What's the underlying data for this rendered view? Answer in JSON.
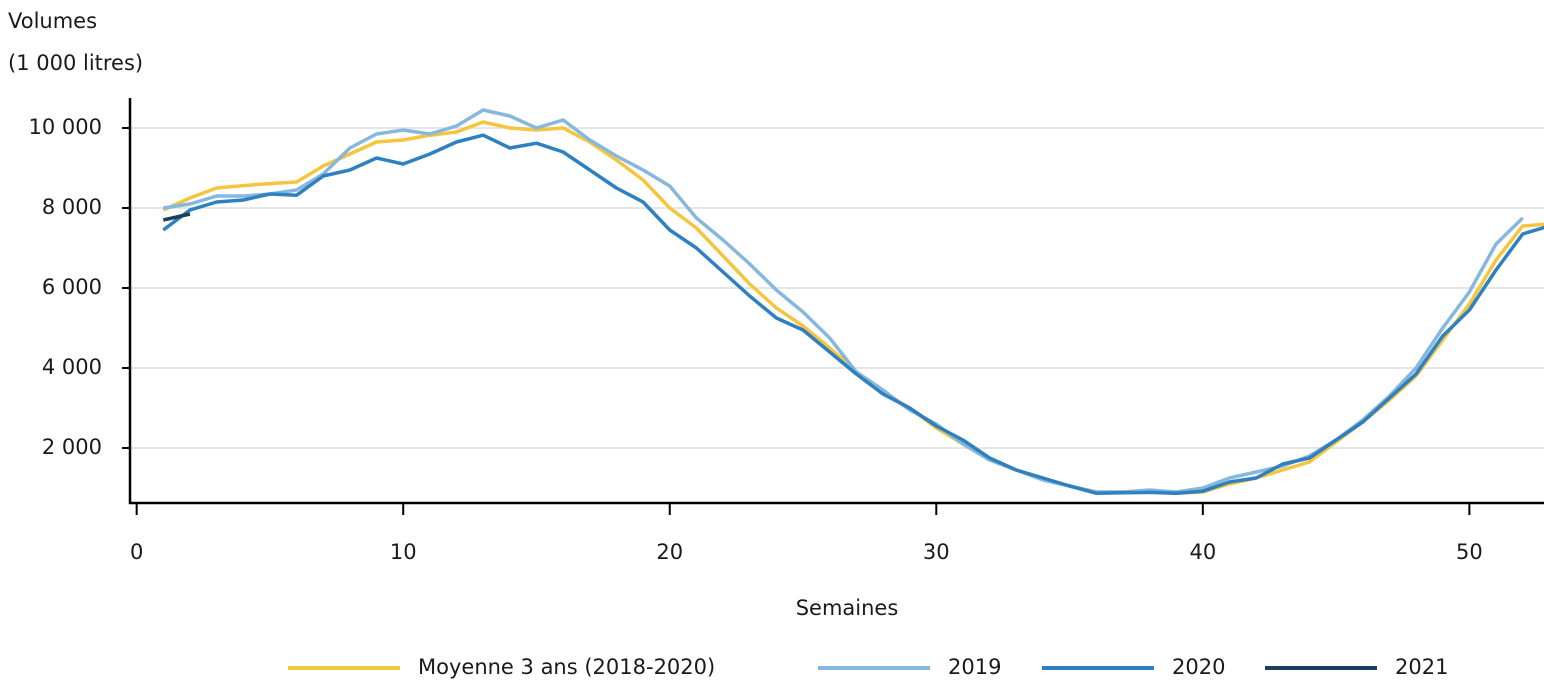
{
  "chart_data": {
    "type": "line",
    "y_label_lines": [
      "Volumes",
      "(1 000 litres)"
    ],
    "xlabel": "Semaines",
    "x": [
      1,
      2,
      3,
      4,
      5,
      6,
      7,
      8,
      9,
      10,
      11,
      12,
      13,
      14,
      15,
      16,
      17,
      18,
      19,
      20,
      21,
      22,
      23,
      24,
      25,
      26,
      27,
      28,
      29,
      30,
      31,
      32,
      33,
      34,
      35,
      36,
      37,
      38,
      39,
      40,
      41,
      42,
      43,
      44,
      45,
      46,
      47,
      48,
      49,
      50,
      51,
      52,
      53
    ],
    "series": [
      {
        "name": "Moyenne 3 ans (2018-2020)",
        "color": "#f5c540",
        "values": [
          7950,
          8250,
          8500,
          8560,
          8610,
          8650,
          9050,
          9350,
          9650,
          9700,
          9820,
          9900,
          10150,
          10000,
          9950,
          10000,
          9650,
          9200,
          8700,
          8000,
          7500,
          6800,
          6100,
          5500,
          5050,
          4500,
          3900,
          3400,
          3000,
          2500,
          2100,
          1700,
          1450,
          1250,
          1050,
          900,
          900,
          900,
          870,
          900,
          1100,
          1250,
          1450,
          1650,
          2150,
          2650,
          3200,
          3800,
          4700,
          5600,
          6700,
          7550,
          7600
        ]
      },
      {
        "name": "2019",
        "color": "#86b7dd",
        "values": [
          8000,
          8100,
          8300,
          8300,
          8350,
          8450,
          8850,
          9500,
          9850,
          9950,
          9850,
          10050,
          10450,
          10300,
          10000,
          10200,
          9700,
          9300,
          8950,
          8550,
          7750,
          7200,
          6600,
          5950,
          5400,
          4750,
          3900,
          3450,
          2950,
          2600,
          2100,
          1700,
          1450,
          1200,
          1050,
          900,
          900,
          950,
          900,
          1000,
          1250,
          1400,
          1550,
          1800,
          2200,
          2700,
          3300,
          4000,
          5000,
          5900,
          7100,
          7750,
          null
        ]
      },
      {
        "name": "2020",
        "color": "#2f80c0",
        "values": [
          7450,
          7950,
          8150,
          8200,
          8350,
          8320,
          8800,
          8950,
          9250,
          9100,
          9350,
          9650,
          9820,
          9500,
          9620,
          9400,
          8950,
          8500,
          8150,
          7450,
          7000,
          6400,
          5800,
          5250,
          4950,
          4400,
          3850,
          3350,
          3000,
          2550,
          2200,
          1750,
          1450,
          1250,
          1050,
          870,
          880,
          890,
          870,
          920,
          1150,
          1250,
          1600,
          1750,
          2200,
          2650,
          3250,
          3850,
          4800,
          5450,
          6450,
          7350,
          7550
        ]
      },
      {
        "name": "2021",
        "color": "#1d3d5c",
        "values": [
          7700,
          7850,
          null,
          null,
          null,
          null,
          null,
          null,
          null,
          null,
          null,
          null,
          null,
          null,
          null,
          null,
          null,
          null,
          null,
          null,
          null,
          null,
          null,
          null,
          null,
          null,
          null,
          null,
          null,
          null,
          null,
          null,
          null,
          null,
          null,
          null,
          null,
          null,
          null,
          null,
          null,
          null,
          null,
          null,
          null,
          null,
          null,
          null,
          null,
          null,
          null,
          null,
          null
        ]
      }
    ],
    "xlim": [
      -0.25,
      52.8
    ],
    "ylim": [
      625,
      10750
    ],
    "xticks": [
      0,
      10,
      20,
      30,
      40,
      50
    ],
    "yticks": [
      {
        "value": 2000,
        "label": "2 000"
      },
      {
        "value": 4000,
        "label": "4 000"
      },
      {
        "value": 6000,
        "label": "6 000"
      },
      {
        "value": 8000,
        "label": "8 000"
      },
      {
        "value": 10000,
        "label": "10 000"
      }
    ],
    "grid": true,
    "legend": "bottom"
  }
}
